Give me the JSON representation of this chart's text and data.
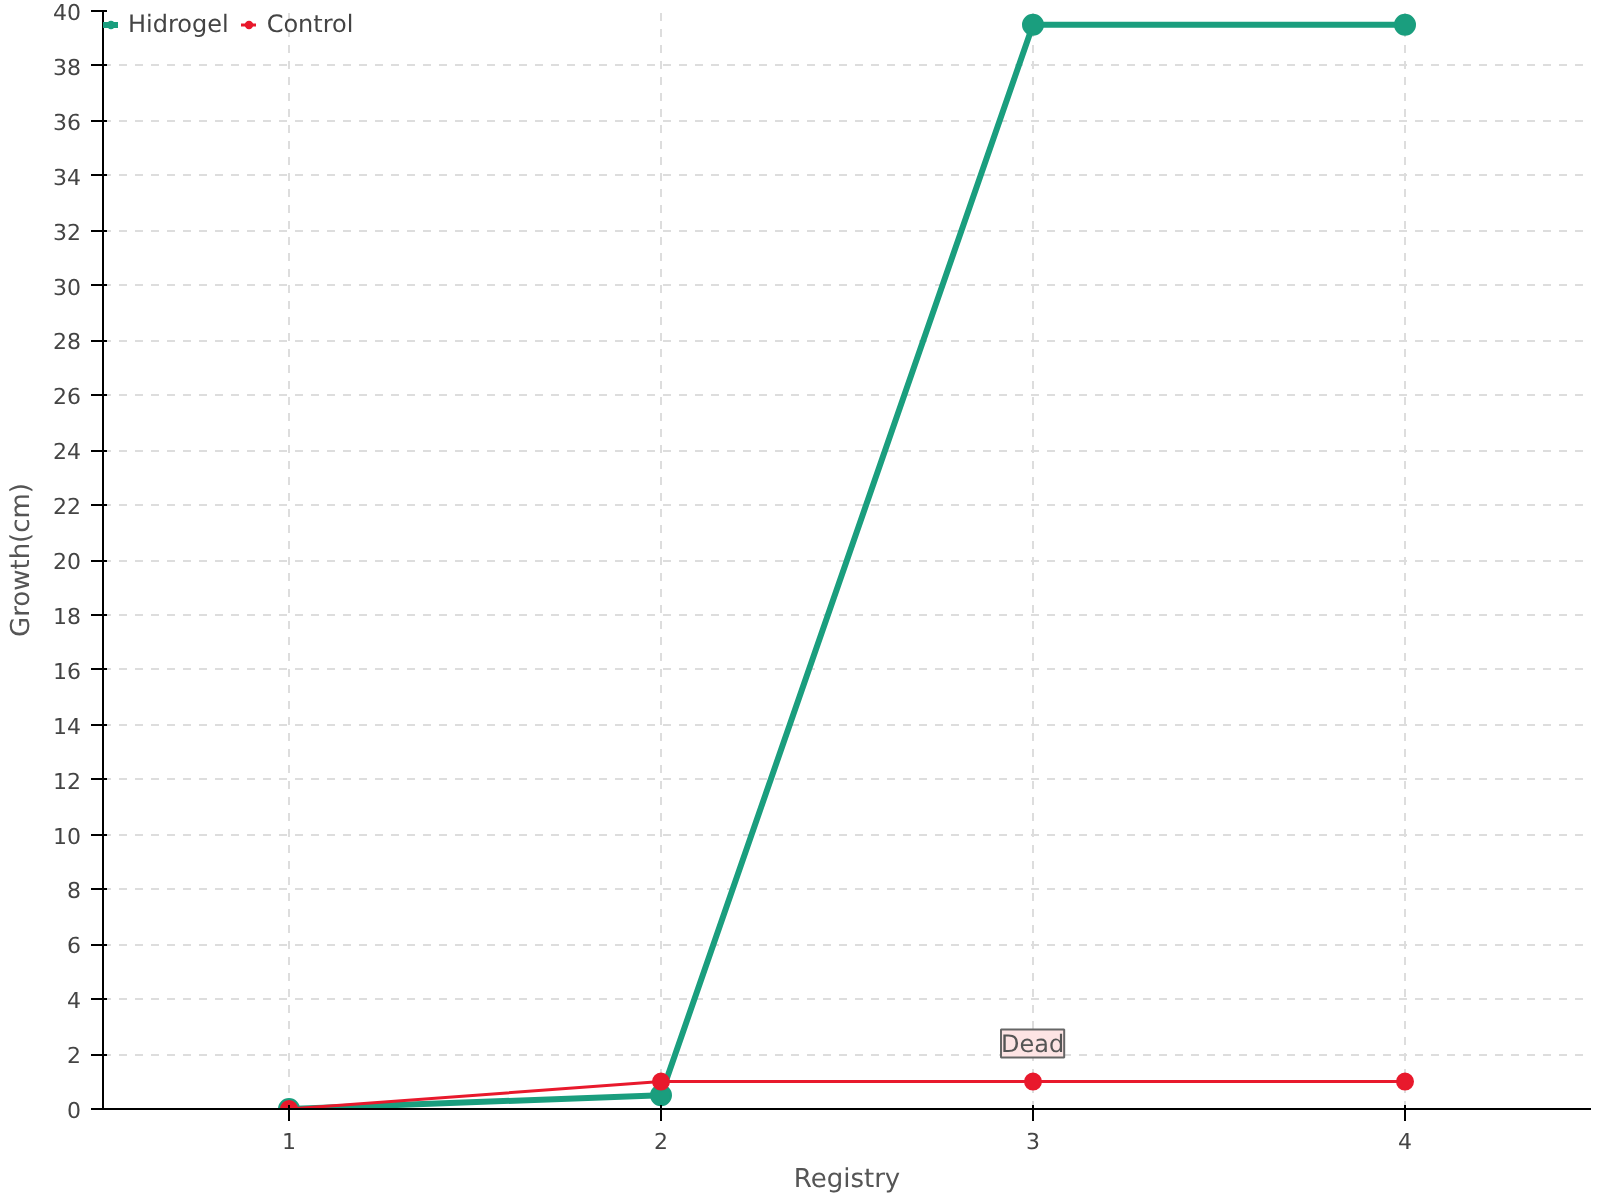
{
  "chart_data": {
    "type": "line",
    "xlabel": "Registry",
    "ylabel": "Growth(cm)",
    "x": [
      1,
      2,
      3,
      4
    ],
    "series": [
      {
        "name": "Hidrogel",
        "color": "#1a9e7e",
        "values": [
          0,
          0.5,
          39.5,
          39.5
        ]
      },
      {
        "name": "Control",
        "color": "#e8192c",
        "values": [
          0,
          1,
          1,
          1
        ]
      }
    ],
    "xlim": [
      0.5,
      4.5
    ],
    "xticks": [
      1,
      2,
      3,
      4
    ],
    "ylim": [
      0,
      40
    ],
    "yticks": [
      0,
      2,
      4,
      6,
      8,
      10,
      12,
      14,
      16,
      18,
      20,
      22,
      24,
      26,
      28,
      30,
      32,
      34,
      36,
      38,
      40
    ],
    "annotations": [
      {
        "text": "Dead",
        "x": 3,
        "y": 1
      }
    ],
    "grid": true,
    "legend": "top left",
    "marker": "circle",
    "line_style": "solid"
  }
}
